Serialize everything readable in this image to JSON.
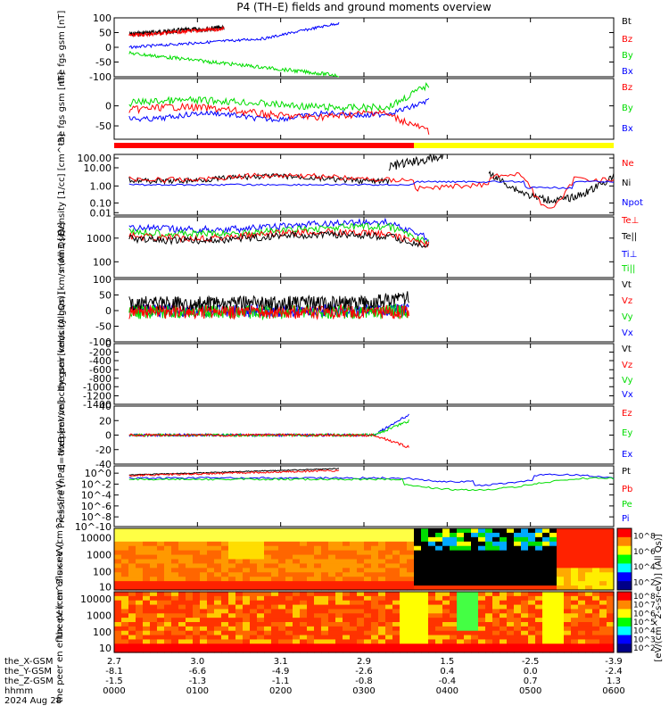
{
  "title": "P4 (TH–E) fields and ground moments overview",
  "colors": {
    "black": "#000000",
    "red": "#ff0000",
    "green": "#00dd00",
    "blue": "#0000ff",
    "yellow": "#ffff00"
  },
  "x_axis": {
    "tick_labels": [
      "0000",
      "0100",
      "0200",
      "0300",
      "0400",
      "0500",
      "0600"
    ],
    "rows": [
      {
        "name": "the_X-GSM",
        "values": [
          "2.7",
          "3.0",
          "3.1",
          "2.9",
          "1.5",
          "-2.5",
          "-3.9"
        ]
      },
      {
        "name": "the_Y-GSM",
        "values": [
          "-8.1",
          "-6.6",
          "-4.9",
          "-2.6",
          "0.4",
          "0.0",
          "-2.4"
        ]
      },
      {
        "name": "the_Z-GSM",
        "values": [
          "-1.5",
          "-1.3",
          "-1.1",
          "-0.8",
          "-0.4",
          "0.7",
          "1.3"
        ]
      },
      {
        "name": "hhmm",
        "values": []
      },
      {
        "name": "2024 Aug 28",
        "values": []
      }
    ]
  },
  "chart_data": [
    {
      "type": "line",
      "panel": "fgs_gsm_1",
      "ylabel": "the fgs gsm [nT]",
      "ylim": [
        -100,
        100
      ],
      "ticks": [
        "100",
        "50",
        "0",
        "-50",
        "-100"
      ],
      "series": [
        {
          "name": "Bt",
          "color": "#000000"
        },
        {
          "name": "Bz",
          "color": "#ff0000"
        },
        {
          "name": "By",
          "color": "#00dd00"
        },
        {
          "name": "Bx",
          "color": "#0000ff"
        }
      ]
    },
    {
      "type": "line",
      "panel": "fgs_gsm_2",
      "ylabel": "the fgs gsm [nT]",
      "ylim": [
        -80,
        40
      ],
      "ticks": [
        "0",
        "-50"
      ],
      "series": [
        {
          "name": "Bz",
          "color": "#ff0000"
        },
        {
          "name": "By",
          "color": "#00dd00"
        },
        {
          "name": "Bx",
          "color": "#0000ff"
        }
      ]
    },
    {
      "type": "bar",
      "panel": "mode_bar",
      "segments": [
        {
          "color": "#ff0000",
          "from": 0,
          "to": 0.6
        },
        {
          "color": "#ffff00",
          "from": 0.6,
          "to": 1
        }
      ]
    },
    {
      "type": "line",
      "panel": "density",
      "ylabel": "Density [1/cc] [cm^-3]",
      "scale": "log",
      "ticks": [
        "100.00",
        "10.00",
        "1.00",
        "0.10",
        "0.01"
      ],
      "series": [
        {
          "name": "Ne",
          "color": "#ff0000"
        },
        {
          "name": "Ni",
          "color": "#000000"
        },
        {
          "name": "Npot",
          "color": "#0000ff"
        }
      ]
    },
    {
      "type": "line",
      "panel": "temperature",
      "ylabel": "mom3 [eV]",
      "scale": "log",
      "ticks": [
        "1000",
        "100"
      ],
      "series": [
        {
          "name": "Te⊥",
          "color": "#ff0000"
        },
        {
          "name": "Te||",
          "color": "#000000"
        },
        {
          "name": "Ti⊥",
          "color": "#0000ff"
        },
        {
          "name": "Ti||",
          "color": "#00dd00"
        }
      ]
    },
    {
      "type": "line",
      "panel": "peir_velocity",
      "ylabel": "the peir velocity gsm [km/s (All Qs)]",
      "ylim": [
        -100,
        100
      ],
      "ticks": [
        "100",
        "50",
        "0",
        "-50",
        "-100"
      ],
      "series": [
        {
          "name": "Vt",
          "color": "#000000"
        },
        {
          "name": "Vz",
          "color": "#ff0000"
        },
        {
          "name": "Vy",
          "color": "#00dd00"
        },
        {
          "name": "Vx",
          "color": "#0000ff"
        }
      ]
    },
    {
      "type": "line",
      "panel": "peer_velocity",
      "ylabel": "the peer velocity gsm [km/s (All Qs)]",
      "ylim": [
        -1400,
        0
      ],
      "ticks": [
        "0",
        "-200",
        "-400",
        "-600",
        "-800",
        "-1000",
        "-1200",
        "-1400"
      ],
      "series": [
        {
          "name": "Vt",
          "color": "#000000"
        },
        {
          "name": "Vz",
          "color": "#ff0000"
        },
        {
          "name": "Vy",
          "color": "#00dd00"
        },
        {
          "name": "Vx",
          "color": "#0000ff"
        }
      ]
    },
    {
      "type": "line",
      "panel": "efield",
      "ylabel": "E=-VxB [mV/m]",
      "ylim": [
        -40,
        40
      ],
      "ticks": [
        "40",
        "20",
        "0",
        "-20",
        "-40"
      ],
      "series": [
        {
          "name": "Ez",
          "color": "#ff0000"
        },
        {
          "name": "Ey",
          "color": "#00dd00"
        },
        {
          "name": "Ex",
          "color": "#0000ff"
        }
      ]
    },
    {
      "type": "line",
      "panel": "pressure",
      "ylabel": "Pressure [nPa]",
      "scale": "log",
      "ticks": [
        "10^0",
        "10^-2",
        "10^-4",
        "10^-6",
        "10^-8",
        "10^-10"
      ],
      "series": [
        {
          "name": "Pt",
          "color": "#000000"
        },
        {
          "name": "Pb",
          "color": "#ff0000"
        },
        {
          "name": "Pe",
          "color": "#00dd00"
        },
        {
          "name": "Pi",
          "color": "#0000ff"
        }
      ]
    },
    {
      "type": "heatmap",
      "panel": "peir_spectrogram",
      "ylabel": "the peir en eflux eV (cm^2-s-sr-eV)",
      "ticks": [
        "10000",
        "1000",
        "100",
        "10"
      ]
    },
    {
      "type": "heatmap",
      "panel": "peer_spectrogram",
      "ylabel": "the peer en eflux eV (cm^2-s-sr-eV)",
      "ticks": [
        "10000",
        "1000",
        "100",
        "10"
      ]
    }
  ],
  "colorbar": {
    "label": "[eV/(cm^2-s-sr-eV)] (All Qs)]",
    "upper_ticks": [
      "10^8",
      "10^6",
      "10^4",
      "10^2"
    ],
    "lower_ticks": [
      "10^8",
      "10^7",
      "10^6",
      "10^5",
      "10^4",
      "10^3",
      "10^2"
    ]
  }
}
